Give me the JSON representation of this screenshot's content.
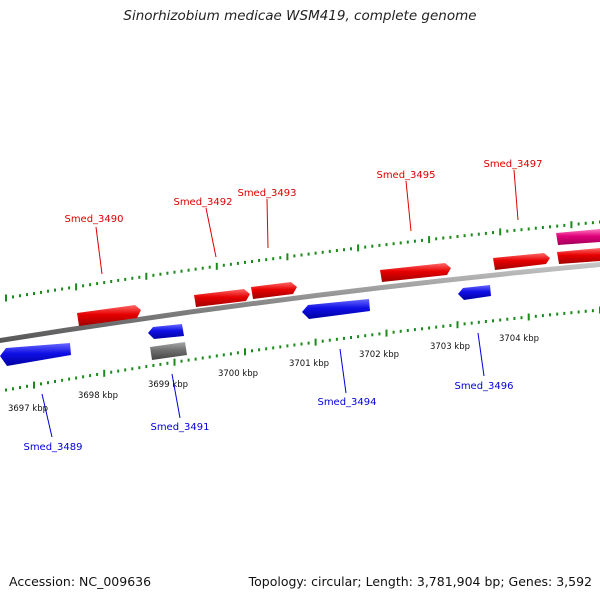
{
  "title": "Sinorhizobium medicae WSM419, complete genome",
  "footer": {
    "accession": "Accession: NC_009636",
    "summary": "Topology: circular; Length: 3,781,904 bp; Genes: 3,592"
  },
  "colors": {
    "forward": "#dd0000",
    "reverse": "#0000dd",
    "pseudo": "#666666",
    "rna": "#e0007a",
    "tick": "#1a8a1a",
    "backbone": "#8a8a8a"
  },
  "scale_labels": [
    "3697 kbp",
    "3698 kbp",
    "3699 kbp",
    "3700 kbp",
    "3701 kbp",
    "3702 kbp",
    "3703 kbp",
    "3704 kbp"
  ],
  "forward_genes": [
    "Smed_3490",
    "Smed_3492",
    "Smed_3493",
    "Smed_3495",
    "Smed_3497"
  ],
  "reverse_genes": [
    "Smed_3489",
    "Smed_3491",
    "Smed_3494",
    "Smed_3496"
  ]
}
